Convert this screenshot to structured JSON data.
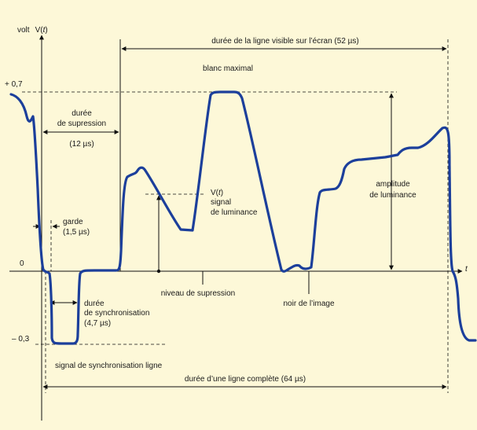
{
  "axes": {
    "y_label_prefix": "volt",
    "y_label_var": "V(",
    "y_label_t": "t",
    "y_label_close": ")",
    "x_label": "t",
    "tick_top": "+ 0,7",
    "tick_zero": "0",
    "tick_bottom": "– 0,3"
  },
  "labels": {
    "visible_line": "durée de la ligne visible sur l’écran (52 µs)",
    "white_max": "blanc maximal",
    "blanking_1": "durée",
    "blanking_2": "de supression",
    "blanking_3": "(12 µs)",
    "signal_v1_a": "V(",
    "signal_v1_t": "t",
    "signal_v1_b": ")",
    "signal_v2": "signal",
    "signal_v3": "de luminance",
    "amplitude_1": "amplitude",
    "amplitude_2": "de luminance",
    "guard_1": "garde",
    "guard_2": "(1,5 µs)",
    "blanking_level": "niveau de supression",
    "black_level": "noir de l’image",
    "sync_1": "durée",
    "sync_2": "de synchronisation",
    "sync_3": "(4,7 µs)",
    "sync_signal": "signal de synchronisation ligne",
    "full_line": "durée d’une ligne complète (64 µs)"
  },
  "colors": {
    "background": "#fdf8d8",
    "signal": "#1c3f9b",
    "ink": "#111111"
  }
}
